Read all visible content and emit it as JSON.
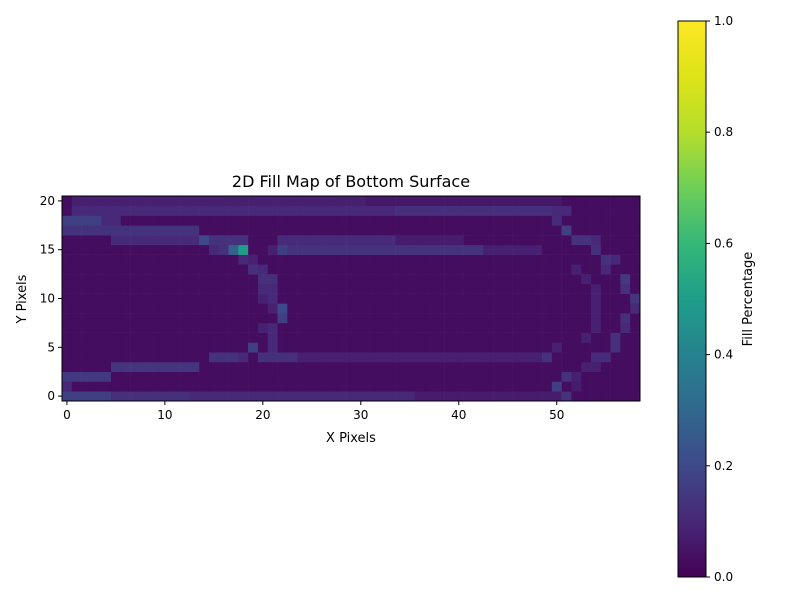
{
  "chart_data": {
    "type": "heatmap",
    "title": "2D Fill Map of Bottom Surface",
    "xlabel": "X Pixels",
    "ylabel": "Y Pixels",
    "colorbar_label": "Fill Percentage",
    "colormap": "viridis",
    "vmin": 0.0,
    "vmax": 1.0,
    "nx": 59,
    "ny": 21,
    "xlim": [
      -0.5,
      58.5
    ],
    "ylim": [
      -0.5,
      20.5
    ],
    "xticks": [
      0,
      10,
      20,
      30,
      40,
      50
    ],
    "xtick_labels": [
      "0",
      "10",
      "20",
      "30",
      "40",
      "50"
    ],
    "yticks": [
      0,
      5,
      10,
      15,
      20
    ],
    "ytick_labels": [
      "0",
      "5",
      "10",
      "15",
      "20"
    ],
    "cbar_ticks": [
      0.0,
      0.2,
      0.4,
      0.6,
      0.8,
      1.0
    ],
    "cbar_tick_labels": [
      "0.0",
      "0.2",
      "0.4",
      "0.6",
      "0.8",
      "1.0"
    ],
    "background_value": 0.03,
    "cells": [
      {
        "x": [
          0,
          4
        ],
        "y": 0,
        "v": 0.17
      },
      {
        "x": [
          5,
          12
        ],
        "y": 0,
        "v": 0.12
      },
      {
        "x": [
          13,
          35
        ],
        "y": 0,
        "v": 0.1
      },
      {
        "x": [
          36,
          50
        ],
        "y": 0,
        "v": 0.07
      },
      {
        "x": 51,
        "y": 0,
        "v": 0.13
      },
      {
        "x": 0,
        "y": 1,
        "v": 0.1
      },
      {
        "x": 50,
        "y": 1,
        "v": 0.17
      },
      {
        "x": 52,
        "y": 1,
        "v": 0.07
      },
      {
        "x": [
          0,
          4
        ],
        "y": 2,
        "v": 0.15
      },
      {
        "x": 51,
        "y": 2,
        "v": 0.13
      },
      {
        "x": 52,
        "y": 2,
        "v": 0.08
      },
      {
        "x": [
          5,
          13
        ],
        "y": 3,
        "v": 0.14
      },
      {
        "x": [
          53,
          54
        ],
        "y": 3,
        "v": 0.08
      },
      {
        "x": [
          15,
          17
        ],
        "y": 4,
        "v": 0.13
      },
      {
        "x": 18,
        "y": 4,
        "v": 0.1
      },
      {
        "x": [
          20,
          23
        ],
        "y": 4,
        "v": 0.12
      },
      {
        "x": [
          24,
          48
        ],
        "y": 4,
        "v": 0.08
      },
      {
        "x": 49,
        "y": 4,
        "v": 0.13
      },
      {
        "x": [
          54,
          55
        ],
        "y": 4,
        "v": 0.11
      },
      {
        "x": 19,
        "y": 5,
        "v": 0.17
      },
      {
        "x": 21,
        "y": 5,
        "v": 0.1
      },
      {
        "x": 50,
        "y": 5,
        "v": 0.08
      },
      {
        "x": 56,
        "y": 5,
        "v": 0.12
      },
      {
        "x": 21,
        "y": 6,
        "v": 0.1
      },
      {
        "x": 53,
        "y": 6,
        "v": 0.08
      },
      {
        "x": 56,
        "y": 6,
        "v": 0.12
      },
      {
        "x": 20,
        "y": 7,
        "v": 0.08
      },
      {
        "x": 21,
        "y": 7,
        "v": 0.1
      },
      {
        "x": 54,
        "y": 7,
        "v": 0.08
      },
      {
        "x": 57,
        "y": 7,
        "v": 0.1
      },
      {
        "x": 22,
        "y": 8,
        "v": 0.17
      },
      {
        "x": 54,
        "y": 8,
        "v": 0.08
      },
      {
        "x": 57,
        "y": 8,
        "v": 0.12
      },
      {
        "x": 22,
        "y": 9,
        "v": 0.2
      },
      {
        "x": 21,
        "y": 9,
        "v": 0.08
      },
      {
        "x": 54,
        "y": 9,
        "v": 0.08
      },
      {
        "x": 58,
        "y": 9,
        "v": 0.1
      },
      {
        "x": 21,
        "y": 10,
        "v": 0.1
      },
      {
        "x": 20,
        "y": 10,
        "v": 0.08
      },
      {
        "x": 54,
        "y": 10,
        "v": 0.08
      },
      {
        "x": 58,
        "y": 10,
        "v": 0.14
      },
      {
        "x": 20,
        "y": 11,
        "v": 0.1
      },
      {
        "x": 21,
        "y": 11,
        "v": 0.1
      },
      {
        "x": 54,
        "y": 11,
        "v": 0.08
      },
      {
        "x": 57,
        "y": 11,
        "v": 0.12
      },
      {
        "x": 20,
        "y": 12,
        "v": 0.12
      },
      {
        "x": 21,
        "y": 12,
        "v": 0.12
      },
      {
        "x": 53,
        "y": 12,
        "v": 0.08
      },
      {
        "x": 57,
        "y": 12,
        "v": 0.15
      },
      {
        "x": 19,
        "y": 13,
        "v": 0.12
      },
      {
        "x": 20,
        "y": 13,
        "v": 0.1
      },
      {
        "x": 52,
        "y": 13,
        "v": 0.08
      },
      {
        "x": 55,
        "y": 13,
        "v": 0.1
      },
      {
        "x": 18,
        "y": 14,
        "v": 0.1
      },
      {
        "x": 19,
        "y": 14,
        "v": 0.08
      },
      {
        "x": 55,
        "y": 14,
        "v": 0.13
      },
      {
        "x": 56,
        "y": 14,
        "v": 0.1
      },
      {
        "x": 15,
        "y": 15,
        "v": 0.1
      },
      {
        "x": 16,
        "y": 15,
        "v": 0.12
      },
      {
        "x": 17,
        "y": 15,
        "v": 0.28
      },
      {
        "x": 18,
        "y": 15,
        "v": 0.5
      },
      {
        "x": 21,
        "y": 15,
        "v": 0.08
      },
      {
        "x": 22,
        "y": 15,
        "v": 0.17
      },
      {
        "x": [
          23,
          42
        ],
        "y": 15,
        "v": 0.13
      },
      {
        "x": [
          43,
          48
        ],
        "y": 15,
        "v": 0.08
      },
      {
        "x": 54,
        "y": 15,
        "v": 0.12
      },
      {
        "x": 14,
        "y": 16,
        "v": 0.2
      },
      {
        "x": [
          15,
          18
        ],
        "y": 16,
        "v": 0.13
      },
      {
        "x": [
          5,
          13
        ],
        "y": 16,
        "v": 0.11
      },
      {
        "x": [
          22,
          33
        ],
        "y": 16,
        "v": 0.11
      },
      {
        "x": [
          34,
          40
        ],
        "y": 16,
        "v": 0.07
      },
      {
        "x": [
          52,
          53
        ],
        "y": 16,
        "v": 0.13
      },
      {
        "x": 54,
        "y": 16,
        "v": 0.1
      },
      {
        "x": [
          0,
          13
        ],
        "y": 17,
        "v": 0.13
      },
      {
        "x": 51,
        "y": 17,
        "v": 0.17
      },
      {
        "x": [
          0,
          3
        ],
        "y": 18,
        "v": 0.17
      },
      {
        "x": [
          4,
          5
        ],
        "y": 18,
        "v": 0.1
      },
      {
        "x": 50,
        "y": 18,
        "v": 0.11
      },
      {
        "x": [
          1,
          33
        ],
        "y": 19,
        "v": 0.1
      },
      {
        "x": [
          34,
          48
        ],
        "y": 19,
        "v": 0.12
      },
      {
        "x": 49,
        "y": 19,
        "v": 0.12
      },
      {
        "x": [
          50,
          51
        ],
        "y": 19,
        "v": 0.1
      },
      {
        "x": [
          1,
          30
        ],
        "y": 20,
        "v": 0.08
      },
      {
        "x": [
          31,
          50
        ],
        "y": 20,
        "v": 0.06
      }
    ]
  }
}
